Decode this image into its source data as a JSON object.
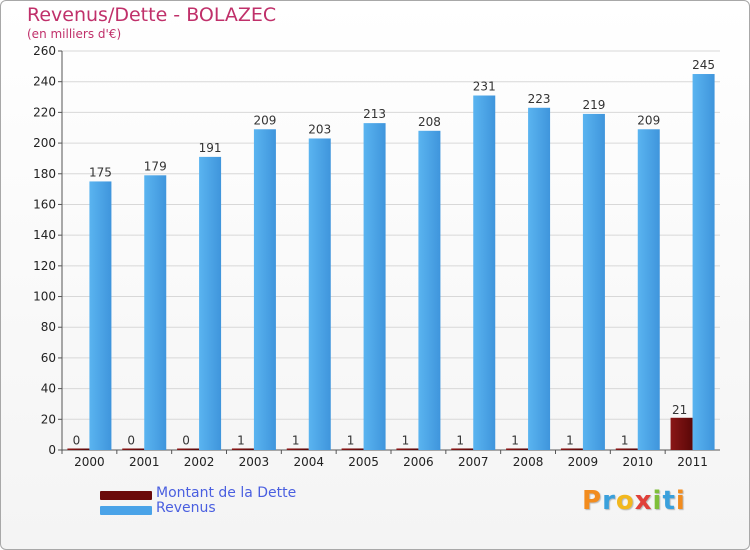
{
  "title": "Revenus/Dette - BOLAZEC",
  "subtitle": "(en milliers d'€)",
  "colors": {
    "title": "#c0306a",
    "dette": "#6b0a0a",
    "revenus": "#4aa3e8",
    "grid": "#d8d8d8",
    "legend_text": "#4a5fe0"
  },
  "legend": [
    {
      "label": "Montant de la Dette",
      "color": "#6b0a0a"
    },
    {
      "label": "Revenus",
      "color": "#4aa3e8"
    }
  ],
  "logo": {
    "letters": [
      "P",
      "r",
      "o",
      "x",
      "i",
      "t",
      "i"
    ],
    "colors": [
      "#f28c1e",
      "#3aa0dc",
      "#f2b81e",
      "#e0403a",
      "#7fbf3a",
      "#3aa0dc",
      "#f28c1e"
    ]
  },
  "chart_data": {
    "type": "bar",
    "title": "Revenus/Dette - BOLAZEC",
    "ylabel": "(en milliers d'€)",
    "xlabel": "",
    "ylim": [
      0,
      260
    ],
    "ytick_step": 20,
    "grid": true,
    "legend_position": "bottom-left",
    "categories": [
      "2000",
      "2001",
      "2002",
      "2003",
      "2004",
      "2005",
      "2006",
      "2007",
      "2008",
      "2009",
      "2010",
      "2011"
    ],
    "series": [
      {
        "name": "Montant de la Dette",
        "values": [
          0,
          0,
          0,
          1,
          1,
          1,
          1,
          1,
          1,
          1,
          1,
          21
        ]
      },
      {
        "name": "Revenus",
        "values": [
          175,
          179,
          191,
          209,
          203,
          213,
          208,
          231,
          223,
          219,
          209,
          245
        ]
      }
    ]
  }
}
